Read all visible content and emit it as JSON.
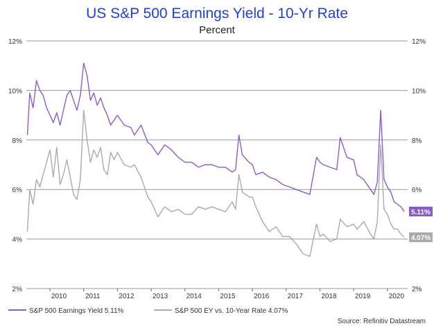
{
  "chart_data": {
    "type": "line",
    "title": "US S&P 500 Earnings Yield - 10-Yr Rate",
    "subtitle": "Percent",
    "source": "Source: Refinitiv Datastream",
    "ylim": [
      2,
      12
    ],
    "y_ticks": [
      "2%",
      "4%",
      "6%",
      "8%",
      "10%",
      "12%"
    ],
    "y_tick_values": [
      2,
      4,
      6,
      8,
      10,
      12
    ],
    "xlim": [
      2009.3,
      2020.6
    ],
    "x_ticks": [
      "2010",
      "2011",
      "2012",
      "2013",
      "2014",
      "2015",
      "2016",
      "2017",
      "2018",
      "2019",
      "2020"
    ],
    "x_tick_values": [
      2010,
      2011,
      2012,
      2013,
      2014,
      2015,
      2016,
      2017,
      2018,
      2019,
      2020
    ],
    "grid": true,
    "legend_position": "bottom-left",
    "series": [
      {
        "name": "S&P 500 Earnings Yield 5.11%",
        "color": "#8a5cc8",
        "end_label": "5.11%",
        "x": [
          2009.33,
          2009.4,
          2009.5,
          2009.6,
          2009.7,
          2009.8,
          2009.9,
          2010.0,
          2010.1,
          2010.2,
          2010.3,
          2010.4,
          2010.5,
          2010.6,
          2010.7,
          2010.8,
          2010.9,
          2011.0,
          2011.1,
          2011.2,
          2011.3,
          2011.4,
          2011.5,
          2011.6,
          2011.7,
          2011.8,
          2011.9,
          2012.0,
          2012.2,
          2012.4,
          2012.5,
          2012.7,
          2012.9,
          2013.0,
          2013.2,
          2013.4,
          2013.6,
          2013.8,
          2014.0,
          2014.2,
          2014.4,
          2014.6,
          2014.8,
          2015.0,
          2015.2,
          2015.4,
          2015.5,
          2015.6,
          2015.7,
          2015.9,
          2016.0,
          2016.1,
          2016.3,
          2016.5,
          2016.7,
          2016.9,
          2017.1,
          2017.3,
          2017.5,
          2017.7,
          2017.9,
          2018.0,
          2018.1,
          2018.3,
          2018.5,
          2018.6,
          2018.8,
          2019.0,
          2019.1,
          2019.3,
          2019.5,
          2019.6,
          2019.7,
          2019.8,
          2019.9,
          2020.0,
          2020.1,
          2020.2,
          2020.3,
          2020.4,
          2020.5
        ],
        "y": [
          8.2,
          9.9,
          9.3,
          10.4,
          10.0,
          9.8,
          9.3,
          9.0,
          8.7,
          9.1,
          8.6,
          9.2,
          9.8,
          10.0,
          9.6,
          9.2,
          9.8,
          11.1,
          10.6,
          9.6,
          9.9,
          9.4,
          9.7,
          9.3,
          9.0,
          8.6,
          8.8,
          9.0,
          8.6,
          8.5,
          8.2,
          8.6,
          7.9,
          7.8,
          7.4,
          7.8,
          7.6,
          7.3,
          7.1,
          7.1,
          6.9,
          7.0,
          7.0,
          6.9,
          6.9,
          6.7,
          6.8,
          8.2,
          7.4,
          7.1,
          7.0,
          6.6,
          6.7,
          6.5,
          6.4,
          6.2,
          6.1,
          6.0,
          5.9,
          5.8,
          7.3,
          7.1,
          7.0,
          6.9,
          6.8,
          8.1,
          7.3,
          7.2,
          6.6,
          6.4,
          6.0,
          5.8,
          6.3,
          9.2,
          6.4,
          6.1,
          5.9,
          5.5,
          5.4,
          5.3,
          5.11
        ]
      },
      {
        "name": "S&P 500 EY vs. 10-Year Rate 4.07%",
        "color": "#aaaaaa",
        "end_label": "4.07%",
        "x": [
          2009.33,
          2009.4,
          2009.5,
          2009.6,
          2009.7,
          2009.8,
          2009.9,
          2010.0,
          2010.1,
          2010.2,
          2010.3,
          2010.4,
          2010.5,
          2010.6,
          2010.7,
          2010.8,
          2010.9,
          2011.0,
          2011.1,
          2011.2,
          2011.3,
          2011.4,
          2011.5,
          2011.6,
          2011.7,
          2011.8,
          2011.9,
          2012.0,
          2012.2,
          2012.4,
          2012.5,
          2012.7,
          2012.9,
          2013.0,
          2013.2,
          2013.4,
          2013.6,
          2013.8,
          2014.0,
          2014.2,
          2014.4,
          2014.6,
          2014.8,
          2015.0,
          2015.2,
          2015.4,
          2015.5,
          2015.6,
          2015.7,
          2015.9,
          2016.0,
          2016.1,
          2016.3,
          2016.5,
          2016.7,
          2016.9,
          2017.1,
          2017.3,
          2017.5,
          2017.7,
          2017.9,
          2018.0,
          2018.1,
          2018.3,
          2018.5,
          2018.6,
          2018.8,
          2019.0,
          2019.1,
          2019.3,
          2019.5,
          2019.6,
          2019.7,
          2019.8,
          2019.9,
          2020.0,
          2020.1,
          2020.2,
          2020.3,
          2020.4,
          2020.5
        ],
        "y": [
          4.3,
          6.0,
          5.4,
          6.4,
          6.1,
          6.6,
          7.1,
          7.6,
          6.5,
          7.7,
          6.2,
          6.6,
          7.2,
          6.5,
          5.8,
          5.6,
          6.4,
          9.2,
          8.0,
          7.1,
          7.6,
          7.3,
          7.7,
          6.8,
          6.6,
          7.5,
          7.2,
          7.5,
          7.0,
          6.9,
          7.0,
          6.5,
          5.7,
          5.5,
          4.9,
          5.3,
          5.1,
          5.2,
          5.0,
          5.0,
          5.3,
          5.2,
          5.3,
          5.2,
          5.1,
          5.5,
          5.2,
          6.6,
          5.9,
          5.7,
          5.7,
          5.3,
          4.7,
          4.3,
          4.5,
          4.1,
          4.1,
          3.8,
          3.4,
          3.3,
          4.6,
          4.1,
          4.2,
          3.9,
          4.0,
          4.8,
          4.5,
          4.6,
          4.4,
          4.7,
          4.2,
          4.0,
          4.7,
          7.8,
          5.2,
          5.0,
          4.6,
          4.4,
          4.4,
          4.2,
          4.07
        ]
      }
    ]
  }
}
